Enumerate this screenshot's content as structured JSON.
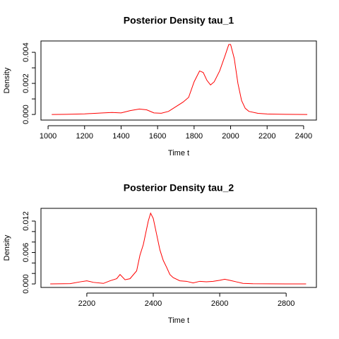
{
  "chart_data": [
    {
      "type": "line",
      "title": "Posterior Density tau_1",
      "xlabel": "Time t",
      "ylabel": "Density",
      "color": "#ff0000",
      "x": [
        1020,
        1100,
        1200,
        1300,
        1350,
        1400,
        1450,
        1500,
        1540,
        1580,
        1620,
        1660,
        1700,
        1740,
        1770,
        1800,
        1830,
        1850,
        1870,
        1890,
        1910,
        1940,
        1970,
        1990,
        2000,
        2020,
        2040,
        2060,
        2080,
        2100,
        2150,
        2200,
        2300,
        2420
      ],
      "values": [
        0,
        1e-05,
        4e-05,
        0.0001,
        0.00013,
        0.0001,
        0.00025,
        0.00035,
        0.0003,
        0.0001,
        8e-05,
        0.0002,
        0.0005,
        0.0008,
        0.0011,
        0.0021,
        0.0028,
        0.0027,
        0.0022,
        0.0019,
        0.0021,
        0.0028,
        0.0038,
        0.0045,
        0.0045,
        0.0036,
        0.002,
        0.0009,
        0.0004,
        0.0002,
        7e-05,
        3e-05,
        1e-05,
        0
      ],
      "xlim": [
        961,
        2470
      ],
      "ylim": [
        -0.00036,
        0.00473
      ],
      "xticks": [
        1000,
        1200,
        1400,
        1600,
        1800,
        2000,
        2200,
        2400
      ],
      "yticks": [
        {
          "value": 0,
          "label": "0.000"
        },
        {
          "value": 0.002,
          "label": "0.002"
        },
        {
          "value": 0.004,
          "label": "0.004"
        }
      ],
      "yminor_ticks": [
        0.001,
        0.003
      ]
    },
    {
      "type": "line",
      "title": "Posterior Density tau_2",
      "xlabel": "Time t",
      "ylabel": "Density",
      "color": "#ff0000",
      "x": [
        2090,
        2150,
        2180,
        2200,
        2220,
        2250,
        2270,
        2290,
        2300,
        2315,
        2330,
        2350,
        2360,
        2370,
        2385,
        2392,
        2400,
        2410,
        2420,
        2430,
        2440,
        2450,
        2460,
        2480,
        2500,
        2520,
        2540,
        2560,
        2580,
        2600,
        2615,
        2630,
        2650,
        2670,
        2700,
        2800,
        2860
      ],
      "values": [
        0,
        5e-05,
        0.0004,
        0.0006,
        0.0003,
        0.0001,
        0.0006,
        0.001,
        0.0018,
        0.0008,
        0.001,
        0.0025,
        0.0055,
        0.0075,
        0.012,
        0.0135,
        0.0125,
        0.0095,
        0.0065,
        0.0045,
        0.0032,
        0.0018,
        0.0012,
        0.0006,
        0.0005,
        0.0002,
        0.0005,
        0.0004,
        0.0005,
        0.0007,
        0.0009,
        0.0007,
        0.0004,
        0.0001,
        3e-05,
        1e-05,
        0
      ],
      "xlim": [
        2062,
        2891
      ],
      "ylim": [
        -0.00067,
        0.01443
      ],
      "xticks": [
        2200,
        2400,
        2600,
        2800
      ],
      "yticks": [
        {
          "value": 0,
          "label": "0.000"
        },
        {
          "value": 0.006,
          "label": "0.006"
        },
        {
          "value": 0.012,
          "label": "0.012"
        }
      ],
      "yminor_ticks": [
        0.002,
        0.004,
        0.008,
        0.01
      ]
    }
  ]
}
